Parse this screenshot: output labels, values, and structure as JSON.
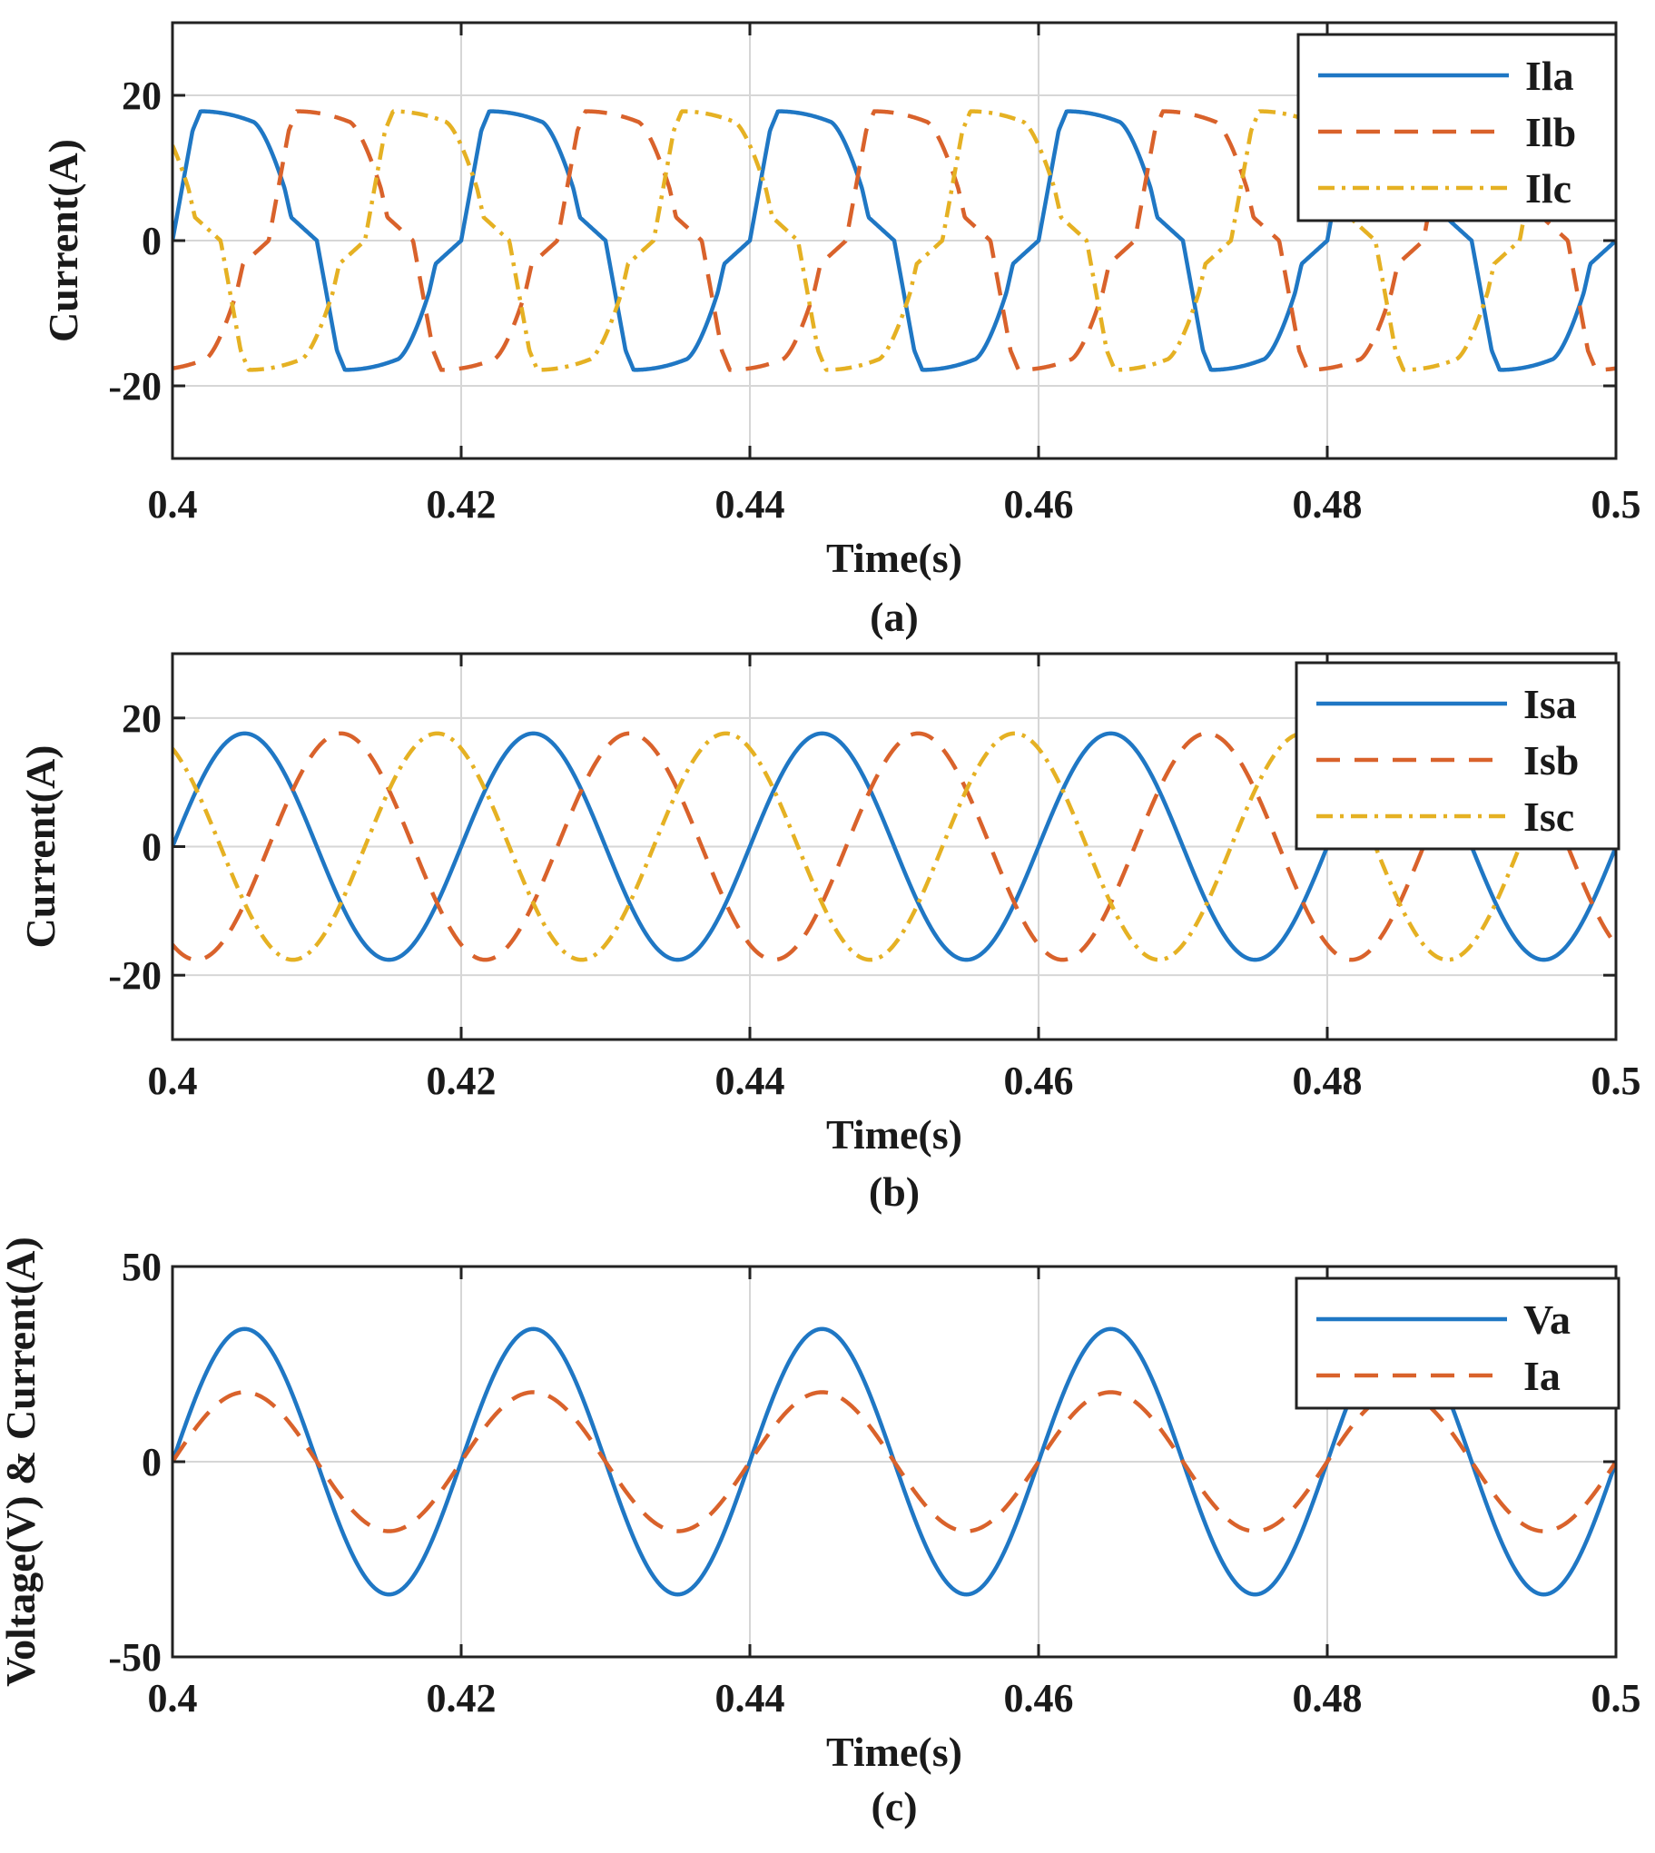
{
  "chart_data": [
    {
      "type": "line",
      "panel_label": "(a)",
      "xlabel": "Time(s)",
      "ylabel": "Current(A)",
      "xlim": [
        0.4,
        0.5
      ],
      "ylim": [
        -30,
        30
      ],
      "xticks": [
        "0.4",
        "0.42",
        "0.44",
        "0.46",
        "0.48",
        "0.5"
      ],
      "yticks": [
        "20",
        "0",
        "-20"
      ],
      "grid": true,
      "legend_position": "top-right",
      "frequency_hz": 50,
      "series": [
        {
          "name": "Ila",
          "color": "#1f77c4",
          "style": "solid",
          "amplitude": 17.8,
          "phase_deg": 0,
          "waveform": "nonlinear-load"
        },
        {
          "name": "Ilb",
          "color": "#d9622b",
          "style": "dashed",
          "amplitude": 17.8,
          "phase_deg": -120,
          "waveform": "nonlinear-load"
        },
        {
          "name": "Ilc",
          "color": "#e5b123",
          "style": "dashdot",
          "amplitude": 17.8,
          "phase_deg": 120,
          "waveform": "nonlinear-load"
        }
      ]
    },
    {
      "type": "line",
      "panel_label": "(b)",
      "xlabel": "Time(s)",
      "ylabel": "Current(A)",
      "xlim": [
        0.4,
        0.5
      ],
      "ylim": [
        -30,
        30
      ],
      "xticks": [
        "0.4",
        "0.42",
        "0.44",
        "0.46",
        "0.48",
        "0.5"
      ],
      "yticks": [
        "20",
        "0",
        "-20"
      ],
      "grid": true,
      "legend_position": "top-right",
      "frequency_hz": 50,
      "series": [
        {
          "name": "Isa",
          "color": "#1f77c4",
          "style": "solid",
          "amplitude": 17.6,
          "phase_deg": 0,
          "waveform": "sine"
        },
        {
          "name": "Isb",
          "color": "#d9622b",
          "style": "dashed",
          "amplitude": 17.6,
          "phase_deg": -120,
          "waveform": "sine"
        },
        {
          "name": "Isc",
          "color": "#e5b123",
          "style": "dashdot",
          "amplitude": 17.6,
          "phase_deg": 120,
          "waveform": "sine"
        }
      ]
    },
    {
      "type": "line",
      "panel_label": "(c)",
      "xlabel": "Time(s)",
      "ylabel": "Voltage(V) & Current(A)",
      "xlim": [
        0.4,
        0.5
      ],
      "ylim": [
        -50,
        50
      ],
      "xticks": [
        "0.4",
        "0.42",
        "0.44",
        "0.46",
        "0.48",
        "0.5"
      ],
      "yticks": [
        "50",
        "0",
        "-50"
      ],
      "grid": true,
      "legend_position": "top-right",
      "frequency_hz": 50,
      "series": [
        {
          "name": "Va",
          "color": "#1f77c4",
          "style": "solid",
          "amplitude": 34,
          "phase_deg": 0,
          "waveform": "sine"
        },
        {
          "name": "Ia",
          "color": "#d9622b",
          "style": "dashed",
          "amplitude": 17.8,
          "phase_deg": 0,
          "waveform": "sine"
        }
      ]
    }
  ]
}
